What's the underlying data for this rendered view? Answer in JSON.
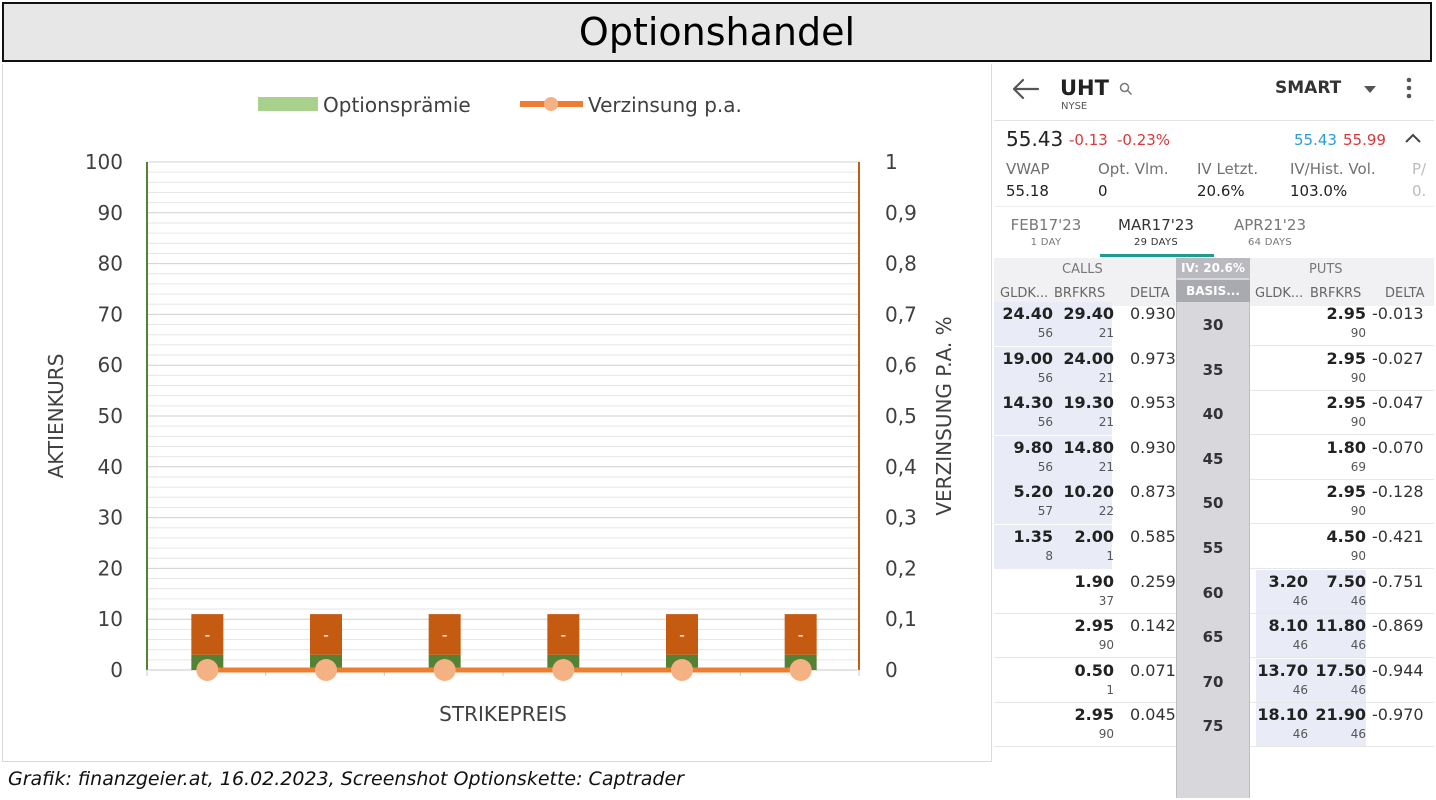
{
  "title": "Optionshandel",
  "caption": "Grafik: finanzgeier.at, 16.02.2023, Screenshot Optionskette: Captrader",
  "chart_data": {
    "type": "bar",
    "categories": [
      "",
      "",
      "",
      "",
      "",
      ""
    ],
    "series": [
      {
        "name": "Optionsprämie",
        "type": "bar",
        "axis": "left",
        "values": [
          3,
          3,
          3,
          3,
          3,
          3
        ],
        "color": "#548235"
      },
      {
        "name": "Verzinsung p.a.",
        "type": "line",
        "axis": "right",
        "values": [
          0,
          0,
          0,
          0,
          0,
          0
        ],
        "color": "#ed7d31",
        "marker_color": "#f4b183"
      },
      {
        "name": "",
        "type": "bar",
        "axis": "left",
        "values": [
          8,
          8,
          8,
          8,
          8,
          8
        ],
        "color": "#c55a11"
      }
    ],
    "data_labels": [
      "-",
      "-",
      "-",
      "-",
      "-",
      "-"
    ],
    "xlabel": "STRIKEPREIS",
    "ylabel": "AKTIENKURS",
    "y2label": "VERZINSUNG P.A. %",
    "ylim": [
      0,
      100
    ],
    "y2lim": [
      0,
      1
    ],
    "yticks": [
      "0",
      "10",
      "20",
      "30",
      "40",
      "50",
      "60",
      "70",
      "80",
      "90",
      "100"
    ],
    "y2ticks": [
      "0",
      "0,1",
      "0,2",
      "0,3",
      "0,4",
      "0,5",
      "0,6",
      "0,7",
      "0,8",
      "0,9",
      "1"
    ],
    "legend": {
      "position": "top",
      "items": [
        {
          "label": "Optionsprämie",
          "color": "#a9d18e",
          "kind": "bar"
        },
        {
          "label": "Verzinsung p.a.",
          "color": "#ed7d31",
          "kind": "line"
        }
      ]
    },
    "grid": true,
    "left_axis_color": "#548235",
    "right_axis_color": "#c55a11"
  },
  "app": {
    "back_icon": "arrow-left-icon",
    "symbol": "UHT",
    "exchange": "NYSE",
    "search_icon": "search-icon",
    "route": "SMART",
    "dropdown_icon": "caret-down-icon",
    "menu_icon": "more-vertical-icon",
    "last": "55.43",
    "change": "-0.13",
    "change_pct": "-0.23%",
    "bid": "55.43",
    "ask": "55.99",
    "collapse_icon": "chevron-up-icon",
    "stats": [
      {
        "label": "VWAP",
        "value": "55.18"
      },
      {
        "label": "Opt. Vlm.",
        "value": "0"
      },
      {
        "label": "IV Letzt.",
        "value": "20.6%"
      },
      {
        "label": "IV/Hist. Vol.",
        "value": "103.0%"
      },
      {
        "label": "P/",
        "value": "0."
      }
    ],
    "expiries": [
      {
        "date": "FEB17'23",
        "days": "1 DAY"
      },
      {
        "date": "MAR17'23",
        "days": "29 DAYS"
      },
      {
        "date": "APR21'23",
        "days": "64 DAYS"
      }
    ],
    "calls_label": "CALLS",
    "puts_label": "PUTS",
    "iv_label": "IV: 20.6%",
    "basis_label": "BASIS...",
    "col_bid": "GLDK...",
    "col_ask": "BRFKRS",
    "col_delta": "DELTA",
    "rows": [
      {
        "strike": "30",
        "c_bid": "24.40",
        "c_bid_sz": "56",
        "c_ask": "29.40",
        "c_ask_sz": "21",
        "c_delta": "0.930",
        "p_bid": "",
        "p_bid_sz": "",
        "p_ask": "2.95",
        "p_ask_sz": "90",
        "p_delta": "-0.013"
      },
      {
        "strike": "35",
        "c_bid": "19.00",
        "c_bid_sz": "56",
        "c_ask": "24.00",
        "c_ask_sz": "21",
        "c_delta": "0.973",
        "p_bid": "",
        "p_bid_sz": "",
        "p_ask": "2.95",
        "p_ask_sz": "90",
        "p_delta": "-0.027"
      },
      {
        "strike": "40",
        "c_bid": "14.30",
        "c_bid_sz": "56",
        "c_ask": "19.30",
        "c_ask_sz": "21",
        "c_delta": "0.953",
        "p_bid": "",
        "p_bid_sz": "",
        "p_ask": "2.95",
        "p_ask_sz": "90",
        "p_delta": "-0.047"
      },
      {
        "strike": "45",
        "c_bid": "9.80",
        "c_bid_sz": "56",
        "c_ask": "14.80",
        "c_ask_sz": "21",
        "c_delta": "0.930",
        "p_bid": "",
        "p_bid_sz": "",
        "p_ask": "1.80",
        "p_ask_sz": "69",
        "p_delta": "-0.070"
      },
      {
        "strike": "50",
        "c_bid": "5.20",
        "c_bid_sz": "57",
        "c_ask": "10.20",
        "c_ask_sz": "22",
        "c_delta": "0.873",
        "p_bid": "",
        "p_bid_sz": "",
        "p_ask": "2.95",
        "p_ask_sz": "90",
        "p_delta": "-0.128"
      },
      {
        "strike": "55",
        "c_bid": "1.35",
        "c_bid_sz": "8",
        "c_ask": "2.00",
        "c_ask_sz": "1",
        "c_delta": "0.585",
        "p_bid": "",
        "p_bid_sz": "",
        "p_ask": "4.50",
        "p_ask_sz": "90",
        "p_delta": "-0.421"
      },
      {
        "strike": "60",
        "c_bid": "",
        "c_bid_sz": "",
        "c_ask": "1.90",
        "c_ask_sz": "37",
        "c_delta": "0.259",
        "p_bid": "3.20",
        "p_bid_sz": "46",
        "p_ask": "7.50",
        "p_ask_sz": "46",
        "p_delta": "-0.751"
      },
      {
        "strike": "65",
        "c_bid": "",
        "c_bid_sz": "",
        "c_ask": "2.95",
        "c_ask_sz": "90",
        "c_delta": "0.142",
        "p_bid": "8.10",
        "p_bid_sz": "46",
        "p_ask": "11.80",
        "p_ask_sz": "46",
        "p_delta": "-0.869"
      },
      {
        "strike": "70",
        "c_bid": "",
        "c_bid_sz": "",
        "c_ask": "0.50",
        "c_ask_sz": "1",
        "c_delta": "0.071",
        "p_bid": "13.70",
        "p_bid_sz": "46",
        "p_ask": "17.50",
        "p_ask_sz": "46",
        "p_delta": "-0.944"
      },
      {
        "strike": "75",
        "c_bid": "",
        "c_bid_sz": "",
        "c_ask": "2.95",
        "c_ask_sz": "90",
        "c_delta": "0.045",
        "p_bid": "18.10",
        "p_bid_sz": "46",
        "p_ask": "21.90",
        "p_ask_sz": "46",
        "p_delta": "-0.970"
      }
    ]
  }
}
